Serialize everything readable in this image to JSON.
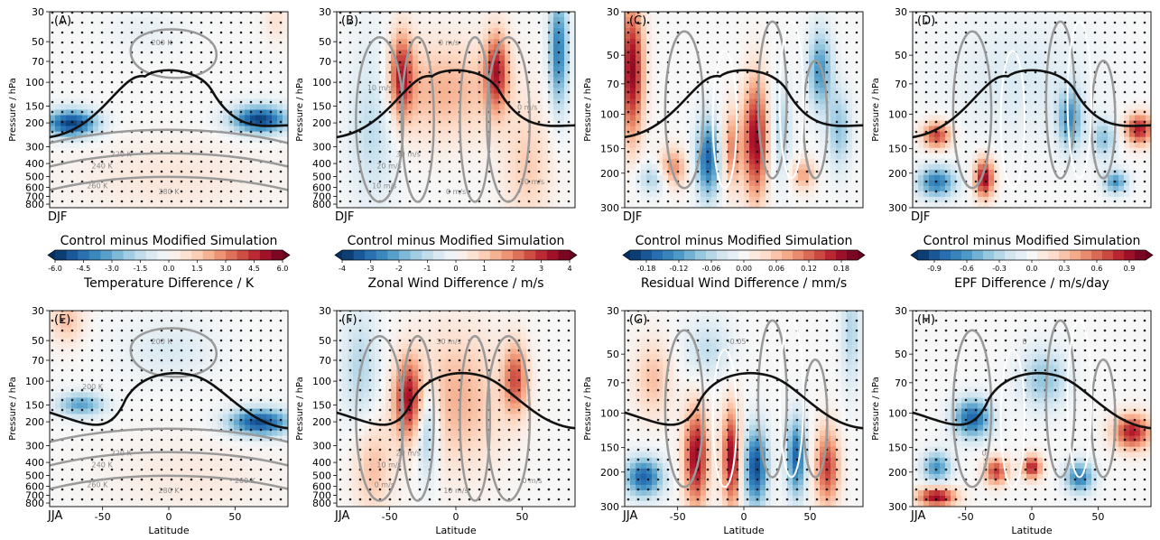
{
  "chart_data": [
    {
      "type": "heatmap",
      "panel": "(A)",
      "season": "DJF",
      "field": "temperature",
      "ylabel": "Pressure / hPa",
      "xlabel": "",
      "xlim": [
        -90,
        90
      ],
      "ylim": [
        850,
        30
      ],
      "log_y": true,
      "yticks": [
        30,
        50,
        70,
        100,
        150,
        200,
        300,
        400,
        500,
        600,
        700,
        800
      ],
      "contour_labels": [
        "200 K",
        "220 K",
        "240 K",
        "260 K",
        "280 K"
      ],
      "colorbar_id": "temp"
    },
    {
      "type": "heatmap",
      "panel": "(B)",
      "season": "DJF",
      "field": "wind",
      "ylabel": "Pressure / hPa",
      "xlabel": "",
      "xlim": [
        -90,
        90
      ],
      "ylim": [
        850,
        30
      ],
      "log_y": true,
      "yticks": [
        30,
        50,
        70,
        100,
        150,
        200,
        300,
        400,
        500,
        600,
        700,
        800
      ],
      "contour_labels": [
        "0 m/s",
        "30 m/s",
        "20 m/s",
        "10 m/s",
        "0 m/s",
        "10 m/s",
        "10 m/s",
        "0 m/s"
      ],
      "colorbar_id": "wind"
    },
    {
      "type": "heatmap",
      "panel": "(C)",
      "season": "DJF",
      "field": "residual",
      "ylabel": "Pressure / hPa",
      "xlabel": "",
      "xlim": [
        -90,
        90
      ],
      "ylim": [
        300,
        30
      ],
      "log_y": true,
      "yticks": [
        30,
        50,
        70,
        100,
        150,
        200,
        300
      ],
      "contour_labels": [],
      "colorbar_id": "res"
    },
    {
      "type": "heatmap",
      "panel": "(D)",
      "season": "DJF",
      "field": "epf",
      "ylabel": "Pressure / hPa",
      "xlabel": "",
      "xlim": [
        -90,
        90
      ],
      "ylim": [
        300,
        30
      ],
      "log_y": true,
      "yticks": [
        30,
        50,
        70,
        100,
        150,
        200,
        300
      ],
      "contour_labels": [],
      "colorbar_id": "epf"
    },
    {
      "type": "heatmap",
      "panel": "(E)",
      "season": "JJA",
      "field": "temperature",
      "ylabel": "Pressure / hPa",
      "xlabel": "Latitude",
      "xlim": [
        -90,
        90
      ],
      "ylim": [
        850,
        30
      ],
      "log_y": true,
      "yticks": [
        30,
        50,
        70,
        100,
        150,
        200,
        300,
        400,
        500,
        600,
        700,
        800
      ],
      "xticks": [
        -50,
        0,
        50
      ],
      "contour_labels": [
        "200 K",
        "220 K",
        "240 K",
        "260 K",
        "280 K",
        "260 K",
        "200 K"
      ]
    },
    {
      "type": "heatmap",
      "panel": "(F)",
      "season": "JJA",
      "field": "wind",
      "ylabel": "Pressure / hPa",
      "xlabel": "Latitude",
      "xlim": [
        -90,
        90
      ],
      "ylim": [
        850,
        30
      ],
      "log_y": true,
      "yticks": [
        30,
        50,
        70,
        100,
        150,
        200,
        300,
        400,
        500,
        600,
        700,
        800
      ],
      "xticks": [
        -50,
        0,
        50
      ],
      "contour_labels": [
        "30 m/s",
        "20 m/s",
        "10 m/s",
        "0 m/s",
        "10 m/s",
        "0 m/s"
      ]
    },
    {
      "type": "heatmap",
      "panel": "(G)",
      "season": "JJA",
      "field": "residual",
      "ylabel": "Pressure / hPa",
      "xlabel": "Latitude",
      "xlim": [
        -90,
        90
      ],
      "ylim": [
        300,
        30
      ],
      "log_y": true,
      "yticks": [
        30,
        50,
        70,
        100,
        150,
        200,
        300
      ],
      "xticks": [
        -50,
        0,
        50
      ],
      "contour_labels": [
        "-0.05"
      ]
    },
    {
      "type": "heatmap",
      "panel": "(H)",
      "season": "JJA",
      "field": "epf",
      "ylabel": "Pressure / hPa",
      "xlabel": "Latitude",
      "xlim": [
        -90,
        90
      ],
      "ylim": [
        300,
        30
      ],
      "log_y": true,
      "yticks": [
        30,
        50,
        70,
        100,
        150,
        200,
        300
      ],
      "xticks": [
        -50,
        0,
        50
      ],
      "contour_labels": [
        "0",
        "0"
      ]
    }
  ],
  "colorbars": [
    {
      "id": "temp",
      "title": "Control minus Modified Simulation",
      "label": "Temperature Difference / K",
      "vmin": -6,
      "vmax": 6,
      "levels": 20,
      "ticks": [
        "-6.0",
        "-4.5",
        "-3.0",
        "-1.5",
        "0.0",
        "1.5",
        "3.0",
        "4.5",
        "6.0"
      ]
    },
    {
      "id": "wind",
      "title": "Control minus Modified Simulation",
      "label": "Zonal Wind Difference / m/s",
      "vmin": -4,
      "vmax": 4,
      "levels": 20,
      "ticks": [
        "-4",
        "-3",
        "-2",
        "-1",
        "0",
        "1",
        "2",
        "3",
        "4"
      ]
    },
    {
      "id": "res",
      "title": "Control minus Modified Simulation",
      "label": "Residual Wind Difference / mm/s",
      "vmin": -0.21,
      "vmax": 0.21,
      "levels": 21,
      "ticks": [
        "-0.18",
        "-0.12",
        "-0.06",
        "0.00",
        "0.06",
        "0.12",
        "0.18"
      ]
    },
    {
      "id": "epf",
      "title": "Control minus Modified Simulation",
      "label": "EPF Difference / m/s/day",
      "vmin": -1.05,
      "vmax": 1.05,
      "levels": 21,
      "ticks": [
        "-0.9",
        "-0.6",
        "-0.3",
        "0.0",
        "0.3",
        "0.6",
        "0.9"
      ]
    }
  ],
  "colors": {
    "neg": "#08306b",
    "pos": "#67001f",
    "tropopause": "#111111",
    "contour": "#9a9a9a",
    "contour_white": "#ffffff"
  }
}
